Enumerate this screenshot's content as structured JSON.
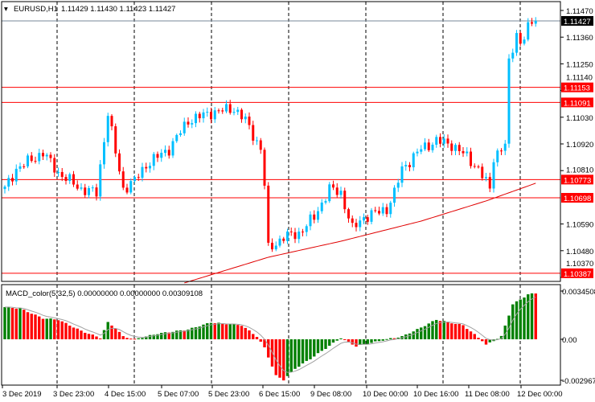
{
  "header": {
    "symbol": "EURUSD,H1",
    "ohlc": "1.11429 1.11430 1.11423 1.11427"
  },
  "macd_label": "MACD_color(5,32,5) 0.00000000 0.00000000 0.00309108",
  "colors": {
    "bull": "#1E90FF",
    "bull_fill": "#00BFFF",
    "bear": "#FF0000",
    "level": "#FF0000",
    "ma": "#E00000",
    "macd_up": "#008000",
    "macd_down": "#FF0000",
    "signal": "#A0A0A0"
  },
  "chart_data": [
    {
      "type": "candlestick",
      "title": "EURUSD,H1",
      "ylim": [
        1.10352,
        1.11505
      ],
      "yticks": [
        "1.11470",
        "1.11360",
        "1.11250",
        "1.11140",
        "1.11030",
        "1.10920",
        "1.10810",
        "1.10590",
        "1.10480",
        "1.10370"
      ],
      "current_price": "1.11427",
      "levels": [
        "1.11153",
        "1.11091",
        "1.10773",
        "1.10698",
        "1.10387"
      ],
      "bars": 140,
      "close_path": [
        [
          0,
          1.10734
        ],
        [
          3,
          1.10817
        ],
        [
          10,
          1.10884
        ],
        [
          14,
          1.10801
        ],
        [
          20,
          1.10734
        ],
        [
          24,
          1.10718
        ],
        [
          27,
          1.11049
        ],
        [
          29,
          1.10884
        ],
        [
          31,
          1.10734
        ],
        [
          34,
          1.10768
        ],
        [
          37,
          1.10834
        ],
        [
          43,
          1.109
        ],
        [
          48,
          1.11016
        ],
        [
          54,
          1.11049
        ],
        [
          60,
          1.11066
        ],
        [
          63,
          1.11016
        ],
        [
          67,
          1.109
        ],
        [
          68,
          1.10751
        ],
        [
          69,
          1.10486
        ],
        [
          73,
          1.10536
        ],
        [
          77,
          1.10552
        ],
        [
          81,
          1.10618
        ],
        [
          85,
          1.10734
        ],
        [
          88,
          1.10718
        ],
        [
          91,
          1.10569
        ],
        [
          94,
          1.10618
        ],
        [
          100,
          1.10652
        ],
        [
          102,
          1.10718
        ],
        [
          104,
          1.10817
        ],
        [
          109,
          1.109
        ],
        [
          113,
          1.10933
        ],
        [
          117,
          1.10917
        ],
        [
          121,
          1.10867
        ],
        [
          124,
          1.10817
        ],
        [
          127,
          1.10734
        ],
        [
          128,
          1.10867
        ],
        [
          131,
          1.10917
        ],
        [
          132,
          1.11248
        ],
        [
          134,
          1.11381
        ],
        [
          135,
          1.11331
        ],
        [
          137,
          1.11397
        ],
        [
          139,
          1.11427
        ]
      ],
      "ma_path": [
        [
          47,
          1.10347
        ],
        [
          69,
          1.10453
        ],
        [
          88,
          1.10519
        ],
        [
          109,
          1.10602
        ],
        [
          126,
          1.10685
        ],
        [
          139,
          1.10758
        ]
      ],
      "xticks": [
        "3 Dec 2019",
        "3 Dec 23:00",
        "4 Dec 15:00",
        "5 Dec 07:00",
        "5 Dec 23:00",
        "6 Dec 15:00",
        "9 Dec 08:00",
        "10 Dec 00:00",
        "10 Dec 16:00",
        "11 Dec 08:00",
        "12 Dec 00:00"
      ]
    },
    {
      "type": "bar",
      "title": "MACD_color(5,32,5)",
      "ylim": [
        -0.002967,
        0.0034508
      ],
      "yticks": [
        "0.0034508",
        "0.00",
        "-0.002967"
      ],
      "macd_path": [
        [
          0,
          0.0023
        ],
        [
          4,
          0.0022
        ],
        [
          10,
          0.0015
        ],
        [
          14,
          0.0014
        ],
        [
          20,
          0.0006
        ],
        [
          25,
          0.0001
        ],
        [
          27,
          0.0012
        ],
        [
          29,
          0.0008
        ],
        [
          31,
          0.0002
        ],
        [
          34,
          0.0
        ],
        [
          40,
          0.0004
        ],
        [
          48,
          0.0007
        ],
        [
          54,
          0.0012
        ],
        [
          62,
          0.001
        ],
        [
          66,
          0.0002
        ],
        [
          68,
          -0.0006
        ],
        [
          71,
          -0.0026
        ],
        [
          73,
          -0.0029
        ],
        [
          76,
          -0.0021
        ],
        [
          80,
          -0.0014
        ],
        [
          88,
          0.0001
        ],
        [
          90,
          -0.0002
        ],
        [
          92,
          -0.0005
        ],
        [
          100,
          0.0
        ],
        [
          104,
          0.0002
        ],
        [
          108,
          0.0007
        ],
        [
          113,
          0.0014
        ],
        [
          120,
          0.001
        ],
        [
          125,
          -0.0001
        ],
        [
          126,
          -0.0004
        ],
        [
          130,
          0.0002
        ],
        [
          133,
          0.0025
        ],
        [
          137,
          0.0032
        ],
        [
          139,
          0.0033
        ]
      ]
    }
  ]
}
